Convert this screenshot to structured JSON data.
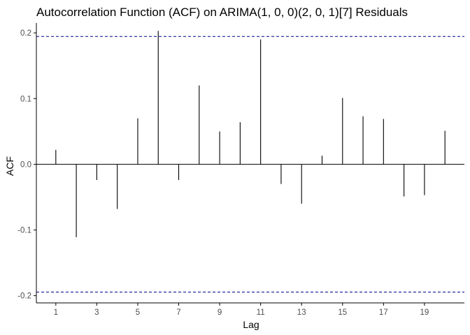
{
  "chart_data": {
    "type": "bar",
    "title": "Autocorrelation Function (ACF) on ARIMA(1, 0, 0)(2, 0, 1)[7] Residuals",
    "xlabel": "Lag",
    "ylabel": "ACF",
    "x": [
      1,
      2,
      3,
      4,
      5,
      6,
      7,
      8,
      9,
      10,
      11,
      12,
      13,
      14,
      15,
      16,
      17,
      18,
      19,
      20
    ],
    "values": [
      0.022,
      -0.111,
      -0.024,
      -0.068,
      0.07,
      0.203,
      -0.024,
      0.12,
      0.05,
      0.064,
      0.19,
      -0.03,
      -0.06,
      0.013,
      0.101,
      0.073,
      0.069,
      -0.049,
      -0.047,
      0.051
    ],
    "xticks": [
      1,
      3,
      5,
      7,
      9,
      11,
      13,
      15,
      17,
      19
    ],
    "yticks": [
      -0.2,
      -0.1,
      0.0,
      0.1,
      0.2
    ],
    "ytick_labels": [
      "-0.2",
      "-0.1",
      "0.0",
      "0.1",
      "0.2"
    ],
    "xlim": [
      0.05,
      20.95
    ],
    "ylim": [
      -0.211,
      0.215
    ],
    "confidence_bound": 0.1945,
    "grid": false,
    "colors": {
      "bars": "#000000",
      "confidence_lines": "#00008b",
      "zero_line": "#000000",
      "axis": "#000000"
    }
  }
}
